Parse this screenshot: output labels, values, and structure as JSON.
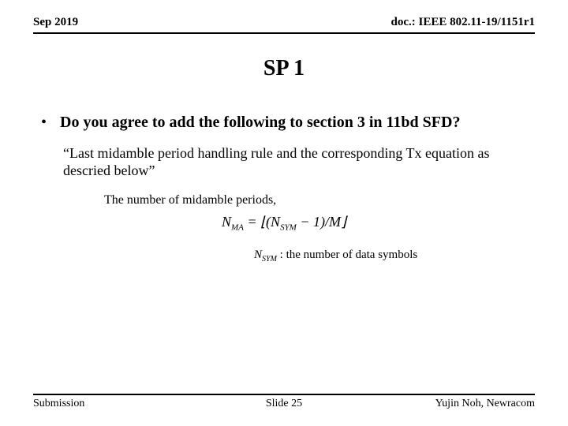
{
  "header": {
    "date": "Sep 2019",
    "doc": "doc.: IEEE 802.11-19/1151r1"
  },
  "title": "SP 1",
  "bullet": {
    "marker": "•",
    "text": "Do you agree to add the following to section 3 in 11bd SFD?"
  },
  "quote": "“Last midamble period handling rule and the corresponding Tx equation as descried below”",
  "formula_label": "The number of midamble periods,",
  "formula": {
    "lhs_base": "N",
    "lhs_sub": "MA",
    "eq": " = ",
    "lfloor": "⌊",
    "open": "(",
    "n_base": "N",
    "n_sub": "SYM",
    "minus1": " − 1",
    "close": ")",
    "div": "/",
    "m": "M",
    "rfloor": "⌋"
  },
  "symbol_note": {
    "n_base": "N",
    "n_sub": "SYM",
    "rest": " : the number of data symbols"
  },
  "footer": {
    "left": "Submission",
    "center": "Slide 25",
    "right": "Yujin Noh, Newracom"
  }
}
